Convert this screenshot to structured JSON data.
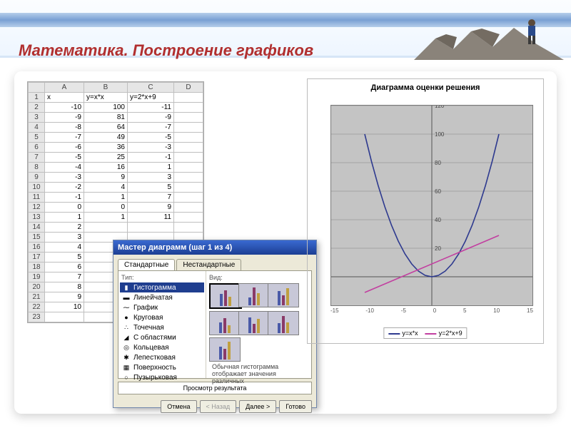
{
  "title": "Математика. Построение графиков",
  "sheet": {
    "cols": [
      "A",
      "B",
      "C",
      "D"
    ],
    "headers": {
      "A": "x",
      "B": "y=x*x",
      "C": "y=2*x+9"
    },
    "rows": [
      {
        "n": 1,
        "A": "x",
        "B": "y=x*x",
        "C": "y=2*x+9"
      },
      {
        "n": 2,
        "A": "-10",
        "B": "100",
        "C": "-11"
      },
      {
        "n": 3,
        "A": "-9",
        "B": "81",
        "C": "-9"
      },
      {
        "n": 4,
        "A": "-8",
        "B": "64",
        "C": "-7"
      },
      {
        "n": 5,
        "A": "-7",
        "B": "49",
        "C": "-5"
      },
      {
        "n": 6,
        "A": "-6",
        "B": "36",
        "C": "-3"
      },
      {
        "n": 7,
        "A": "-5",
        "B": "25",
        "C": "-1"
      },
      {
        "n": 8,
        "A": "-4",
        "B": "16",
        "C": "1"
      },
      {
        "n": 9,
        "A": "-3",
        "B": "9",
        "C": "3"
      },
      {
        "n": 10,
        "A": "-2",
        "B": "4",
        "C": "5"
      },
      {
        "n": 11,
        "A": "-1",
        "B": "1",
        "C": "7"
      },
      {
        "n": 12,
        "A": "0",
        "B": "0",
        "C": "9"
      },
      {
        "n": 13,
        "A": "1",
        "B": "1",
        "C": "11"
      },
      {
        "n": 14,
        "A": "2",
        "B": "",
        "C": ""
      },
      {
        "n": 15,
        "A": "3",
        "B": "",
        "C": ""
      },
      {
        "n": 16,
        "A": "4",
        "B": "",
        "C": ""
      },
      {
        "n": 17,
        "A": "5",
        "B": "",
        "C": ""
      },
      {
        "n": 18,
        "A": "6",
        "B": "",
        "C": ""
      },
      {
        "n": 19,
        "A": "7",
        "B": "",
        "C": ""
      },
      {
        "n": 20,
        "A": "8",
        "B": "",
        "C": ""
      },
      {
        "n": 21,
        "A": "9",
        "B": "",
        "C": ""
      },
      {
        "n": 22,
        "A": "10",
        "B": "",
        "C": ""
      },
      {
        "n": 23,
        "A": "",
        "B": "",
        "C": ""
      }
    ]
  },
  "wizard": {
    "title": "Мастер диаграмм (шаг 1 из 4)",
    "tabs": [
      "Стандартные",
      "Нестандартные"
    ],
    "left_label": "Тип:",
    "right_label": "Вид:",
    "types": [
      "Гистограмма",
      "Линейчатая",
      "График",
      "Круговая",
      "Точечная",
      "С областями",
      "Кольцевая",
      "Лепестковая",
      "Поверхность",
      "Пузырьковая"
    ],
    "caption": "Обычная гистограмма отображает значения различных",
    "preview": "Просмотр результата",
    "buttons": {
      "cancel": "Отмена",
      "back": "< Назад",
      "next": "Далее >",
      "finish": "Готово"
    }
  },
  "chart": {
    "title": "Диаграмма оценки решения",
    "xlim": [
      -15,
      15
    ],
    "ylim": [
      -20,
      120
    ],
    "xticks": [
      -15,
      -10,
      -5,
      0,
      5,
      10,
      15
    ],
    "yticks": [
      20,
      40,
      60,
      80,
      100,
      120
    ],
    "grid_color": "#9a9a9a",
    "bg": "#c4c4c4",
    "series": [
      {
        "name": "y=x*x",
        "color": "#2e3a8f",
        "points": [
          [
            -10,
            100
          ],
          [
            -9,
            81
          ],
          [
            -8,
            64
          ],
          [
            -7,
            49
          ],
          [
            -6,
            36
          ],
          [
            -5,
            25
          ],
          [
            -4,
            16
          ],
          [
            -3,
            9
          ],
          [
            -2,
            4
          ],
          [
            -1,
            1
          ],
          [
            0,
            0
          ],
          [
            1,
            1
          ],
          [
            2,
            4
          ],
          [
            3,
            9
          ],
          [
            4,
            16
          ],
          [
            5,
            25
          ],
          [
            6,
            36
          ],
          [
            7,
            49
          ],
          [
            8,
            64
          ],
          [
            9,
            81
          ],
          [
            10,
            100
          ]
        ]
      },
      {
        "name": "y=2*x+9",
        "color": "#c23fa0",
        "points": [
          [
            -10,
            -11
          ],
          [
            10,
            29
          ]
        ]
      }
    ],
    "legend": [
      "y=x*x",
      "y=2*x+9"
    ]
  }
}
